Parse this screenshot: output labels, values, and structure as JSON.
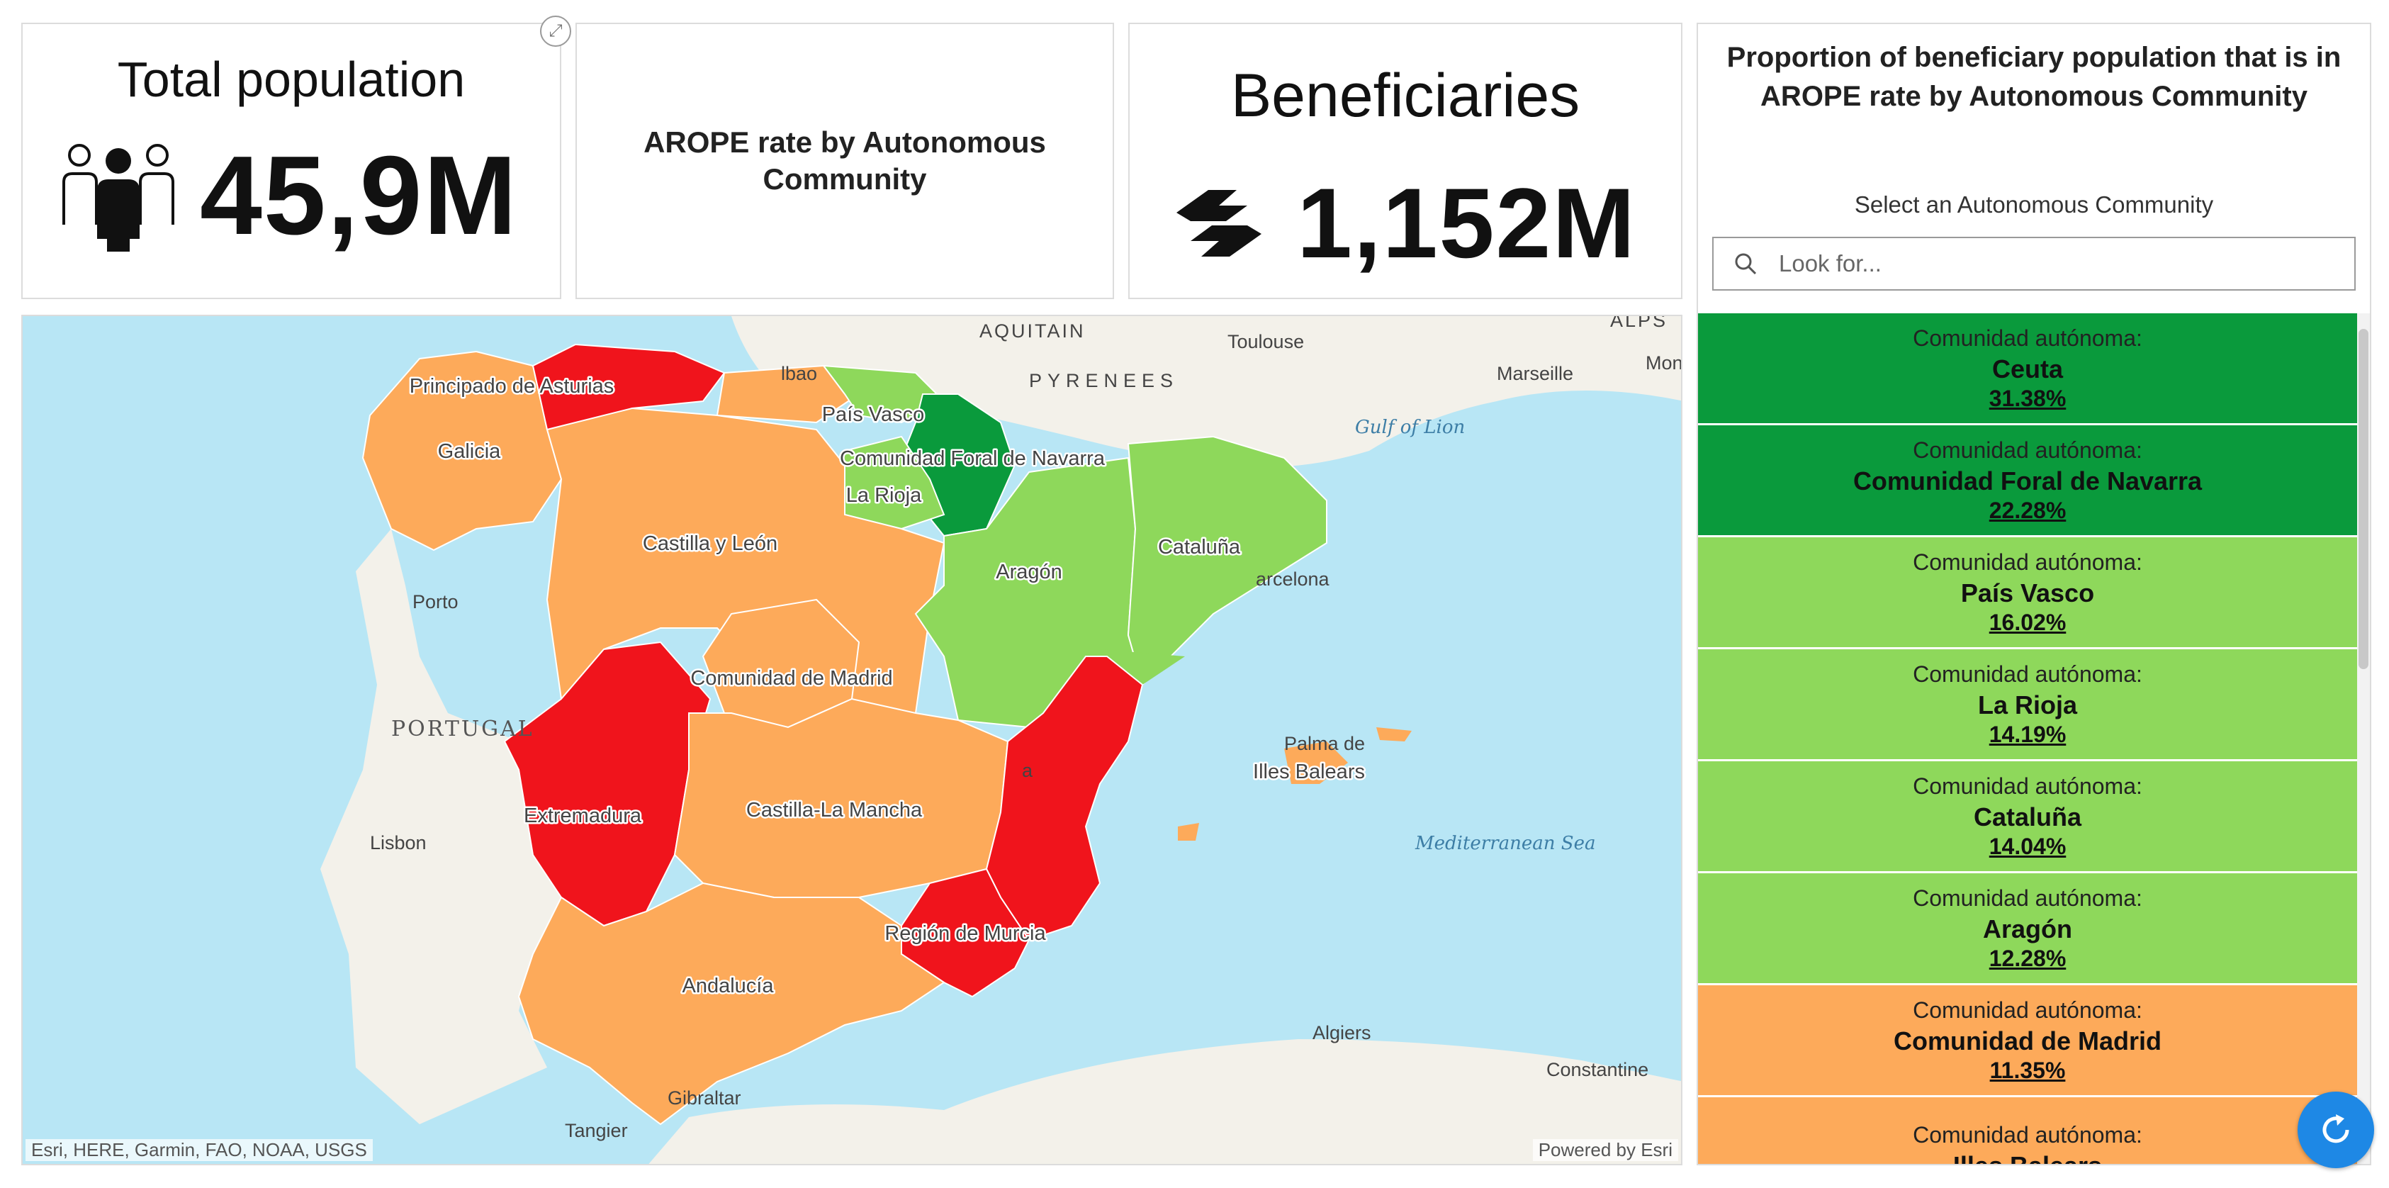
{
  "total_population": {
    "title": "Total population",
    "value": "45,9M",
    "icon": "people-group-icon"
  },
  "arope_card": {
    "title": "AROPE rate by Autonomous Community"
  },
  "beneficiaries": {
    "title": "Beneficiaries",
    "value": "1,152M",
    "icon": "handshake-icon"
  },
  "panel": {
    "title": "Proportion of beneficiary population that is in AROPE rate by Autonomous Community",
    "subtitle": "Select an Autonomous Community",
    "search_placeholder": "Look for...",
    "item_label": "Comunidad autónoma:",
    "items": [
      {
        "name": "Ceuta",
        "percent": "31.38%",
        "color": "#0a9a3c"
      },
      {
        "name": "Comunidad Foral de Navarra",
        "percent": "22.28%",
        "color": "#0a9a3c"
      },
      {
        "name": "País Vasco",
        "percent": "16.02%",
        "color": "#8ed85b"
      },
      {
        "name": "La Rioja",
        "percent": "14.19%",
        "color": "#8ed85b"
      },
      {
        "name": "Cataluña",
        "percent": "14.04%",
        "color": "#8ed85b"
      },
      {
        "name": "Aragón",
        "percent": "12.28%",
        "color": "#8ed85b"
      },
      {
        "name": "Comunidad de Madrid",
        "percent": "11.35%",
        "color": "#fdaa5a"
      },
      {
        "name": "Illes Balears",
        "percent": "",
        "color": "#fdaa5a"
      }
    ]
  },
  "map": {
    "regions": {
      "galicia": "Galicia",
      "asturias": "Principado de Asturias",
      "pais_vasco": "País Vasco",
      "navarra": "Comunidad Foral de Navarra",
      "rioja": "La Rioja",
      "castilla_leon": "Castilla y León",
      "aragon": "Aragón",
      "cataluna": "Cataluña",
      "madrid": "Comunidad de Madrid",
      "extremadura": "Extremadura",
      "castilla_mancha": "Castilla-La Mancha",
      "murcia": "Región de Murcia",
      "andalucia": "Andalucía",
      "baleares": "Illes Balears"
    },
    "places": {
      "aquitain": "AQUITAIN",
      "toulouse": "Toulouse",
      "marseille": "Marseille",
      "monaco": "Mona",
      "alps": "ALPS",
      "gulf": "Gulf of Lion",
      "pyrenees": "PYRENEES",
      "porto": "Porto",
      "portugal": "PORTUGAL",
      "lisbon": "Lisbon",
      "barcelona": "arcelona",
      "palma": "Palma de",
      "med_sea": "Mediterranean Sea",
      "algiers": "Algiers",
      "constantine": "Constantine",
      "gibraltar": "Gibraltar",
      "tangier": "Tangier",
      "bilbao": "lbao",
      "valencia": "a"
    },
    "attribution_left": "Esri, HERE, Garmin, FAO, NOAA, USGS",
    "attribution_right": "Powered by Esri",
    "colors": {
      "dark_green": "#0a9a3c",
      "light_green": "#8ed85b",
      "orange": "#fdaa5a",
      "red": "#f0141c",
      "sea": "#b8e6f5",
      "land": "#f3f1ea"
    }
  }
}
